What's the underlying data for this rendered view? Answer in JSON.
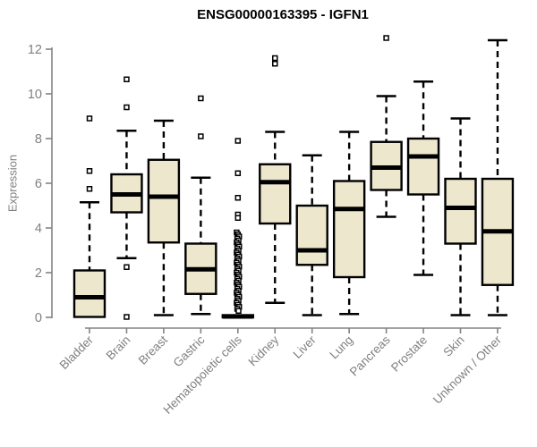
{
  "title": "ENSG00000163395 - IGFN1",
  "chart_data": {
    "type": "boxplot",
    "title": "ENSG00000163395 - IGFN1",
    "xlabel": "",
    "ylabel": "Expression",
    "ylim": [
      0,
      12
    ],
    "yticks": [
      0,
      2,
      4,
      6,
      8,
      10,
      12
    ],
    "grid": false,
    "legend": "none",
    "categories": [
      "Bladder",
      "Brain",
      "Breast",
      "Gastric",
      "Hematopoietic cells",
      "Kidney",
      "Liver",
      "Lung",
      "Pancreas",
      "Prostate",
      "Skin",
      "Unknown / Other"
    ],
    "series": [
      {
        "name": "Bladder",
        "whisker_low": 0.02,
        "q1": 0.02,
        "median": 0.9,
        "q3": 2.1,
        "whisker_high": 5.15,
        "outliers": [
          5.75,
          6.55,
          8.9
        ]
      },
      {
        "name": "Brain",
        "whisker_low": 2.65,
        "q1": 4.7,
        "median": 5.5,
        "q3": 6.4,
        "whisker_high": 8.35,
        "outliers": [
          10.65,
          9.4,
          2.25,
          0.02
        ]
      },
      {
        "name": "Breast",
        "whisker_low": 0.1,
        "q1": 3.35,
        "median": 5.4,
        "q3": 7.05,
        "whisker_high": 8.8,
        "outliers": []
      },
      {
        "name": "Gastric",
        "whisker_low": 0.15,
        "q1": 1.05,
        "median": 2.15,
        "q3": 3.3,
        "whisker_high": 6.25,
        "outliers": [
          9.8,
          8.1
        ]
      },
      {
        "name": "Hematopoietic cells",
        "whisker_low": 0.0,
        "q1": 0.0,
        "median": 0.04,
        "q3": 0.1,
        "whisker_high": 0.1,
        "outliers": [
          7.9,
          6.45,
          5.35,
          4.6,
          4.45,
          3.8,
          3.71,
          3.62,
          3.53,
          3.44,
          3.35,
          3.26,
          3.17,
          3.08,
          2.99,
          2.9,
          2.81,
          2.72,
          2.63,
          2.54,
          2.45,
          2.36,
          2.27,
          2.18,
          2.09,
          2.0,
          1.91,
          1.82,
          1.73,
          1.64,
          1.55,
          1.46,
          1.37,
          1.28,
          1.19,
          1.1,
          1.01,
          0.92,
          0.83,
          0.74,
          0.65,
          0.56,
          0.47,
          0.38,
          0.29
        ]
      },
      {
        "name": "Kidney",
        "whisker_low": 0.65,
        "q1": 4.2,
        "median": 6.05,
        "q3": 6.85,
        "whisker_high": 8.3,
        "outliers": [
          11.6,
          11.35
        ]
      },
      {
        "name": "Liver",
        "whisker_low": 0.1,
        "q1": 2.35,
        "median": 3.0,
        "q3": 5.0,
        "whisker_high": 7.25,
        "outliers": []
      },
      {
        "name": "Lung",
        "whisker_low": 0.15,
        "q1": 1.8,
        "median": 4.85,
        "q3": 6.1,
        "whisker_high": 8.3,
        "outliers": []
      },
      {
        "name": "Pancreas",
        "whisker_low": 4.5,
        "q1": 5.7,
        "median": 6.7,
        "q3": 7.85,
        "whisker_high": 9.9,
        "outliers": [
          12.5
        ]
      },
      {
        "name": "Prostate",
        "whisker_low": 1.9,
        "q1": 5.5,
        "median": 7.2,
        "q3": 8.0,
        "whisker_high": 10.55,
        "outliers": []
      },
      {
        "name": "Skin",
        "whisker_low": 0.1,
        "q1": 3.3,
        "median": 4.9,
        "q3": 6.2,
        "whisker_high": 8.9,
        "outliers": []
      },
      {
        "name": "Unknown / Other",
        "whisker_low": 0.1,
        "q1": 1.45,
        "median": 3.85,
        "q3": 6.2,
        "whisker_high": 12.4,
        "outliers": []
      }
    ],
    "colors": {
      "box_fill": "#ede7cd",
      "box_border": "#000000",
      "median": "#000000",
      "whisker": "#000000",
      "outlier_stroke": "#000000",
      "outlier_fill": "#ffffff",
      "axis": "#848484",
      "tick_label": "#808080",
      "title": "#000000",
      "background": "#ffffff"
    }
  }
}
